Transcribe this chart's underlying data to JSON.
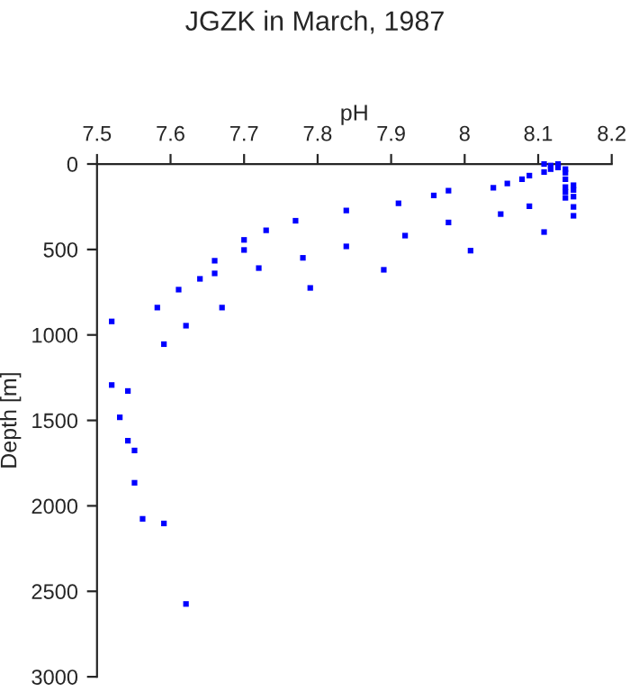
{
  "chart_data": {
    "type": "scatter",
    "title": "JGZK in March, 1987",
    "xlabel": "pH",
    "ylabel": "Depth [m]",
    "x": [
      7.52,
      7.582,
      7.591,
      7.611,
      7.621,
      7.64,
      7.66,
      7.66,
      7.67,
      7.7,
      7.7,
      7.73,
      7.72,
      7.77,
      7.78,
      7.79,
      7.839,
      7.839,
      7.89,
      7.91,
      7.919,
      7.958,
      7.978,
      7.978,
      8.008,
      8.039,
      8.049,
      8.058,
      8.078,
      8.088,
      8.088,
      8.108,
      8.108,
      8.108,
      8.117,
      8.117,
      8.127,
      8.127,
      8.137,
      8.137,
      8.137,
      8.137,
      8.137,
      8.137,
      8.148,
      8.148,
      8.148,
      8.148,
      8.148,
      7.52,
      7.542,
      7.531,
      7.542,
      7.551,
      7.551,
      7.562,
      7.591,
      7.621
    ],
    "values": [
      921,
      840,
      1054,
      735,
      946,
      672,
      566,
      640,
      840,
      444,
      503,
      388,
      609,
      332,
      549,
      725,
      272,
      482,
      619,
      230,
      419,
      184,
      156,
      342,
      507,
      139,
      293,
      114,
      89,
      68,
      247,
      0,
      47,
      398,
      9,
      30,
      0,
      20,
      30,
      51,
      89,
      135,
      163,
      198,
      124,
      152,
      191,
      251,
      303,
      1293,
      1328,
      1482,
      1619,
      1676,
      1865,
      2076,
      2103,
      2574
    ],
    "color": "#0000ff",
    "marker": "square",
    "xlim": [
      7.5,
      8.2
    ],
    "xticks": [
      7.5,
      7.6,
      7.7,
      7.8,
      7.9,
      8,
      8.1,
      8.2
    ],
    "ylim": [
      3000,
      0
    ],
    "yticks": [
      0,
      500,
      1000,
      1500,
      2000,
      2500,
      3000
    ],
    "grid": false,
    "legend": false
  }
}
